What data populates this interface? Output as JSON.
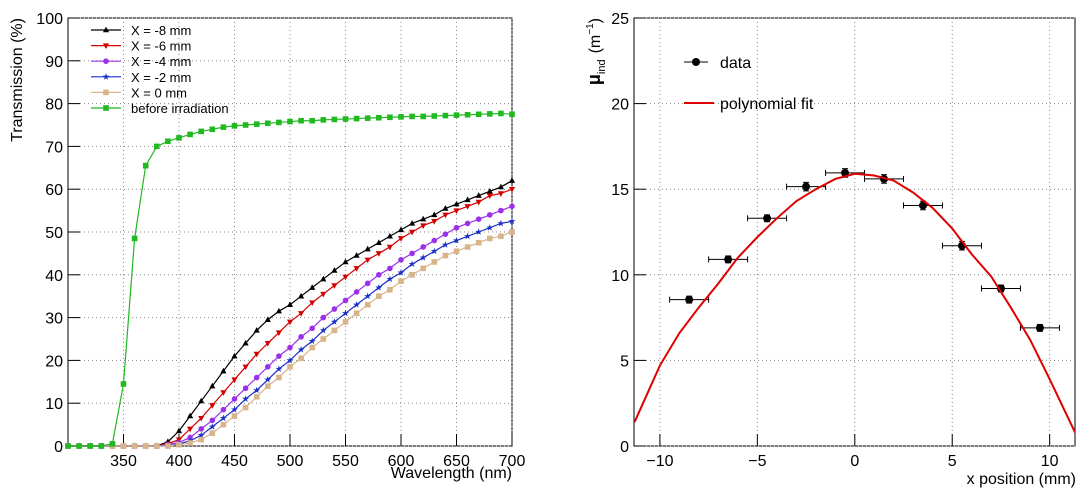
{
  "chart_data": [
    {
      "type": "line",
      "xlabel": "Wavelength (nm)",
      "ylabel": "Transmission (%)",
      "xlim": [
        300,
        700
      ],
      "ylim": [
        0,
        100
      ],
      "xticks": [
        350,
        400,
        450,
        500,
        550,
        600,
        650,
        700
      ],
      "yticks": [
        0,
        10,
        20,
        30,
        40,
        50,
        60,
        70,
        80,
        90,
        100
      ],
      "grid": true,
      "legend": "top-left",
      "x": [
        300,
        310,
        320,
        330,
        340,
        350,
        360,
        370,
        380,
        390,
        400,
        410,
        420,
        430,
        440,
        450,
        460,
        470,
        480,
        490,
        500,
        510,
        520,
        530,
        540,
        550,
        560,
        570,
        580,
        590,
        600,
        610,
        620,
        630,
        640,
        650,
        660,
        670,
        680,
        690,
        700
      ],
      "series": [
        {
          "name": "X = -8 mm",
          "color": "#000000",
          "marker": "triangle",
          "values": [
            0,
            0,
            0,
            0,
            0,
            0,
            0,
            0,
            0,
            1,
            3.5,
            7,
            10.5,
            14,
            17.5,
            21,
            24,
            27,
            29.5,
            31.5,
            33,
            35,
            37,
            39,
            41,
            43,
            44.5,
            46,
            47.5,
            49,
            50.5,
            52,
            53,
            54,
            55.5,
            56.5,
            57.5,
            58.5,
            59.5,
            60.5,
            62
          ]
        },
        {
          "name": "X = -6 mm",
          "color": "#d40000",
          "marker": "triangle-down",
          "values": [
            0,
            0,
            0,
            0,
            0,
            0,
            0,
            0,
            0,
            0.5,
            1.5,
            4,
            6.5,
            9.5,
            12.5,
            15.5,
            18.5,
            21.5,
            24,
            26.5,
            29,
            31,
            33.5,
            35.5,
            37.5,
            39.5,
            41.5,
            43.5,
            45,
            46.5,
            48.5,
            50,
            51.5,
            52.5,
            54,
            55,
            56,
            57,
            58.5,
            59,
            60
          ]
        },
        {
          "name": "X = -4 mm",
          "color": "#9b30e8",
          "marker": "circle",
          "values": [
            0,
            0,
            0,
            0,
            0,
            0,
            0,
            0,
            0,
            0.3,
            0.8,
            2,
            4,
            6,
            8.5,
            11,
            13.5,
            16,
            18.5,
            21,
            23,
            25.5,
            27.5,
            30,
            32,
            34,
            36,
            38,
            40,
            41.5,
            43.5,
            45,
            46.5,
            48,
            49.5,
            51,
            52,
            53,
            54,
            55,
            56
          ]
        },
        {
          "name": "X = -2 mm",
          "color": "#1a2fc8",
          "marker": "star",
          "values": [
            0,
            0,
            0,
            0,
            0,
            0,
            0,
            0,
            0,
            0,
            0.5,
            1.2,
            2.5,
            4.5,
            6.5,
            8.5,
            11,
            13,
            15.5,
            18,
            20,
            22.5,
            24.5,
            27,
            29,
            31,
            33,
            35,
            37,
            39,
            40.5,
            42.5,
            44,
            45.5,
            47,
            48,
            49,
            50,
            51,
            52,
            52.5
          ]
        },
        {
          "name": "X = 0 mm",
          "color": "#d8b48a",
          "marker": "square",
          "values": [
            0,
            0,
            0,
            0,
            0,
            0,
            0,
            0,
            0,
            0,
            0.3,
            0.7,
            1.5,
            3,
            5,
            7,
            9,
            11.5,
            14,
            16,
            18.5,
            20.5,
            23,
            25,
            27,
            29,
            31,
            33,
            35,
            36.5,
            38.5,
            40,
            41.5,
            43,
            44.5,
            45.5,
            46.5,
            47.5,
            48.5,
            49,
            50
          ]
        },
        {
          "name": "before irradiation",
          "color": "#22b822",
          "marker": "square",
          "values": [
            0,
            0,
            0,
            0,
            0.5,
            14.5,
            48.5,
            65.5,
            70,
            71.2,
            72,
            72.8,
            73.5,
            74,
            74.5,
            74.8,
            75,
            75.2,
            75.4,
            75.6,
            75.8,
            76,
            76,
            76.2,
            76.3,
            76.4,
            76.5,
            76.6,
            76.7,
            76.8,
            76.9,
            77,
            77,
            77.1,
            77.2,
            77.3,
            77.4,
            77.5,
            77.6,
            77.7,
            77.5
          ]
        }
      ]
    },
    {
      "type": "scatter",
      "xlabel": "x position (mm)",
      "ylabel": [
        "μ",
        "ind",
        "(m",
        "−1",
        ")"
      ],
      "xlim": [
        -11.33,
        11.3
      ],
      "ylim": [
        0,
        25
      ],
      "xticks": [
        {
          "value": -10,
          "label": "−10"
        },
        {
          "value": -5,
          "label": "−5"
        },
        0,
        5,
        10
      ],
      "yticks": [
        0,
        5,
        10,
        15,
        20,
        25
      ],
      "grid": true,
      "legend": "top-left",
      "series": [
        {
          "name": "data",
          "color": "#000000",
          "marker": "circle",
          "x": [
            -8.5,
            -6.5,
            -4.5,
            -2.5,
            -0.5,
            1.5,
            3.5,
            5.5,
            7.5,
            9.5
          ],
          "values": [
            8.55,
            10.9,
            13.3,
            15.15,
            15.95,
            15.6,
            14.05,
            11.7,
            9.2,
            6.9
          ],
          "x_errors": [
            1,
            1,
            1,
            1,
            1,
            1,
            1,
            1,
            1,
            1
          ],
          "errors": [
            0.2,
            0.2,
            0.2,
            0.25,
            0.25,
            0.25,
            0.25,
            0.25,
            0.2,
            0.2
          ]
        },
        {
          "name": "polynomial fit",
          "color": "#e00000",
          "line": true,
          "x": [
            -11.3,
            -10,
            -9,
            -8,
            -7,
            -6,
            -5,
            -4,
            -3,
            -2,
            -1,
            0,
            1,
            2,
            3,
            4,
            5,
            6,
            7,
            8,
            9,
            10,
            11.3
          ],
          "values": [
            1.4,
            4.7,
            6.6,
            8.1,
            9.5,
            11.0,
            12.2,
            13.3,
            14.3,
            15.0,
            15.6,
            15.9,
            15.8,
            15.5,
            14.8,
            13.9,
            12.7,
            11.2,
            9.9,
            8.1,
            6.2,
            3.9,
            0.8
          ]
        }
      ]
    }
  ]
}
